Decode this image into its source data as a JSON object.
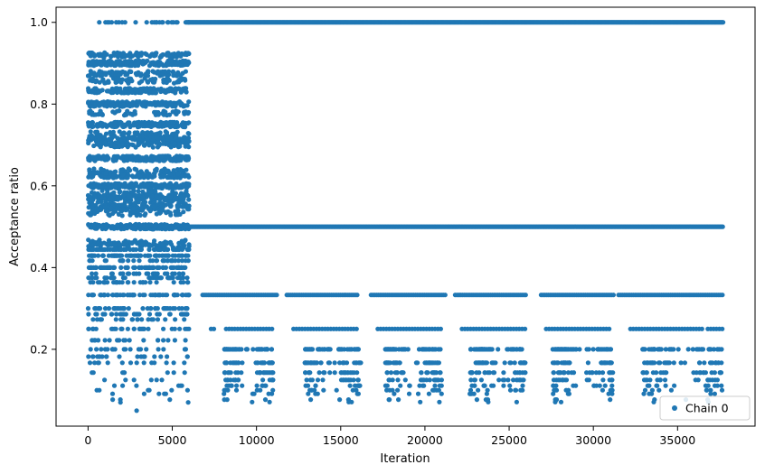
{
  "chart_data": {
    "type": "scatter",
    "xlabel": "Iteration",
    "ylabel": "Acceptance ratio",
    "xlim": [
      -1900,
      39600
    ],
    "ylim": [
      0.012,
      1.037
    ],
    "xticks": [
      0,
      5000,
      10000,
      15000,
      20000,
      25000,
      30000,
      35000
    ],
    "yticks": [
      0.2,
      0.4,
      0.6,
      0.8,
      1.0
    ],
    "xtick_labels": [
      "0",
      "5000",
      "10000",
      "15000",
      "20000",
      "25000",
      "30000",
      "35000"
    ],
    "ytick_labels": [
      "0.2",
      "0.4",
      "0.6",
      "0.8",
      "1.0"
    ],
    "grid": false,
    "legend": {
      "position": "bottom-right",
      "entries": [
        "Chain 0"
      ]
    },
    "series": [
      {
        "name": "Chain 0",
        "color": "#1f77b4",
        "x_range": [
          0,
          37700
        ],
        "phases": [
          {
            "x_range": [
              0,
              6000
            ],
            "description_levels": [
              1.0,
              0.92,
              0.9,
              0.875,
              0.857,
              0.833,
              0.8,
              0.75,
              0.714,
              0.667,
              0.625,
              0.6,
              0.571,
              0.545,
              0.5,
              0.455,
              0.444,
              0.429,
              0.4,
              0.375,
              0.364,
              0.333,
              0.3,
              0.286,
              0.25,
              0.222,
              0.2,
              0.182,
              0.167,
              0.143,
              0.1,
              0.091,
              0.077,
              0.07,
              0.05
            ]
          },
          {
            "x_range": [
              6000,
              37700
            ],
            "description_levels": [
              1.0,
              0.5,
              0.333,
              0.25,
              0.2,
              0.167,
              0.143,
              0.125,
              0.111,
              0.1,
              0.091,
              0.083,
              0.077,
              0.071
            ]
          }
        ]
      }
    ]
  }
}
